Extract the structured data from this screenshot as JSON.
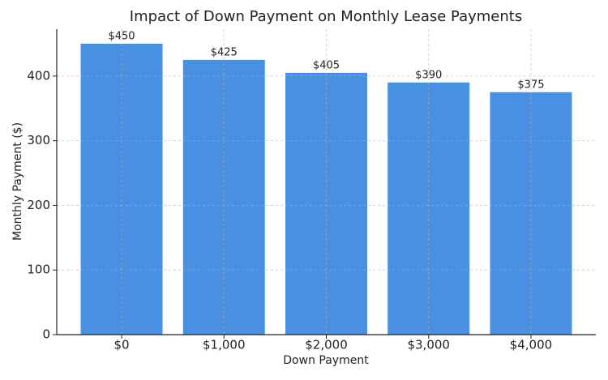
{
  "chart_data": {
    "type": "bar",
    "title": "Impact of Down Payment on Monthly Lease Payments",
    "x_label": "Down Payment",
    "y_label": "Monthly Payment ($)",
    "categories": [
      "$0",
      "$1,000",
      "$2,000",
      "$3,000",
      "$4,000"
    ],
    "values": [
      450,
      425,
      405,
      390,
      375
    ],
    "value_labels": [
      "$450",
      "$425",
      "$405",
      "$390",
      "$375"
    ],
    "color": "#4a90e2",
    "ylim": [
      0,
      472.5
    ],
    "yticks": [
      0,
      100,
      200,
      300,
      400
    ],
    "grid": true
  }
}
